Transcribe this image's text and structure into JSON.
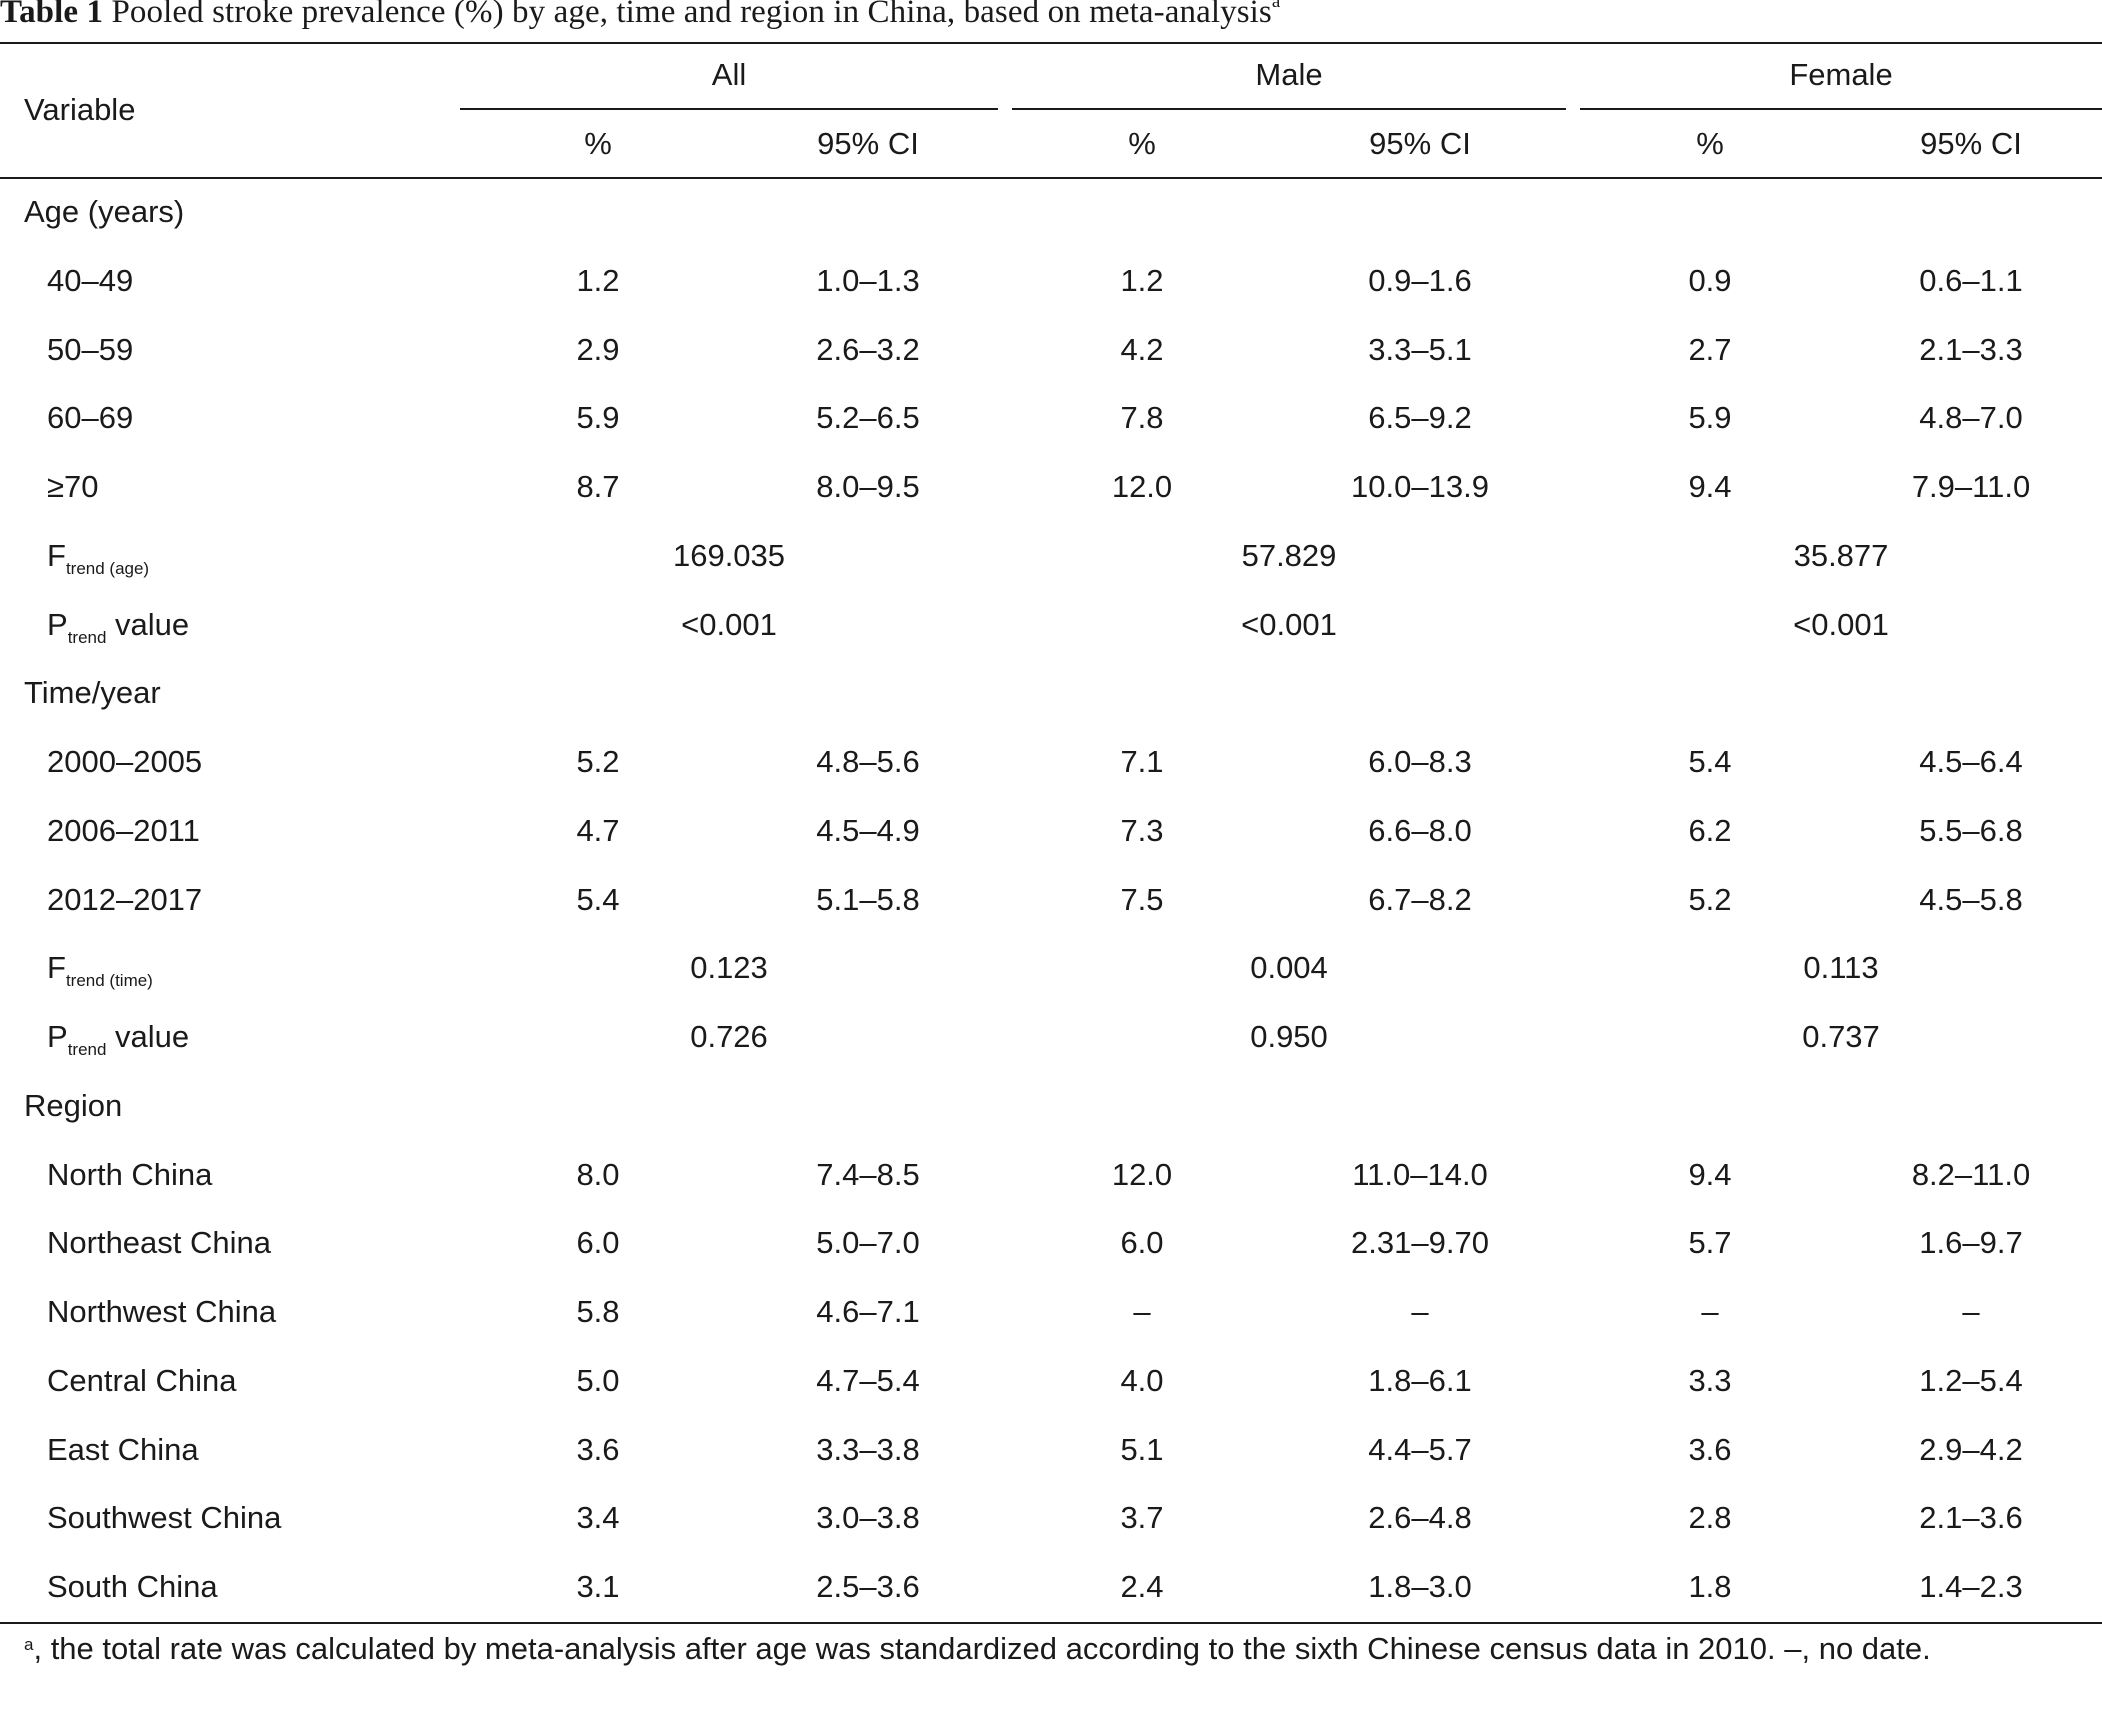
{
  "caption": {
    "label": "Table 1",
    "text": "Pooled stroke prevalence (%) by age, time and region in China, based on meta-analysis",
    "sup": "a"
  },
  "header": {
    "variable": "Variable",
    "groups": [
      "All",
      "Male",
      "Female"
    ],
    "pct": "%",
    "ci": "95% CI"
  },
  "rows": [
    {
      "type": "section",
      "label": "Age (years)"
    },
    {
      "type": "data",
      "label": "40–49",
      "values": [
        "1.2",
        "1.0–1.3",
        "1.2",
        "0.9–1.6",
        "0.9",
        "0.6–1.1"
      ]
    },
    {
      "type": "data",
      "label": "50–59",
      "values": [
        "2.9",
        "2.6–3.2",
        "4.2",
        "3.3–5.1",
        "2.7",
        "2.1–3.3"
      ]
    },
    {
      "type": "data",
      "label": "60–69",
      "values": [
        "5.9",
        "5.2–6.5",
        "7.8",
        "6.5–9.2",
        "5.9",
        "4.8–7.0"
      ]
    },
    {
      "type": "data",
      "label": "≥70",
      "values": [
        "8.7",
        "8.0–9.5",
        "12.0",
        "10.0–13.9",
        "9.4",
        "7.9–11.0"
      ]
    },
    {
      "type": "stat",
      "main": "F",
      "sub": "trend (age)",
      "tail": "",
      "values": [
        "169.035",
        "57.829",
        "35.877"
      ]
    },
    {
      "type": "stat",
      "main": "P",
      "sub": "trend",
      "tail": " value",
      "values": [
        "<0.001",
        "<0.001",
        "<0.001"
      ]
    },
    {
      "type": "section",
      "label": "Time/year"
    },
    {
      "type": "data",
      "label": "2000–2005",
      "values": [
        "5.2",
        "4.8–5.6",
        "7.1",
        "6.0–8.3",
        "5.4",
        "4.5–6.4"
      ]
    },
    {
      "type": "data",
      "label": "2006–2011",
      "values": [
        "4.7",
        "4.5–4.9",
        "7.3",
        "6.6–8.0",
        "6.2",
        "5.5–6.8"
      ]
    },
    {
      "type": "data",
      "label": "2012–2017",
      "values": [
        "5.4",
        "5.1–5.8",
        "7.5",
        "6.7–8.2",
        "5.2",
        "4.5–5.8"
      ]
    },
    {
      "type": "stat",
      "main": "F",
      "sub": "trend (time)",
      "tail": "",
      "values": [
        "0.123",
        "0.004",
        "0.113"
      ]
    },
    {
      "type": "stat",
      "main": "P",
      "sub": "trend",
      "tail": " value",
      "values": [
        "0.726",
        "0.950",
        "0.737"
      ]
    },
    {
      "type": "section",
      "label": "Region"
    },
    {
      "type": "data",
      "label": "North China",
      "values": [
        "8.0",
        "7.4–8.5",
        "12.0",
        "11.0–14.0",
        "9.4",
        "8.2–11.0"
      ]
    },
    {
      "type": "data",
      "label": "Northeast China",
      "values": [
        "6.0",
        "5.0–7.0",
        "6.0",
        "2.31–9.70",
        "5.7",
        "1.6–9.7"
      ]
    },
    {
      "type": "data",
      "label": "Northwest China",
      "values": [
        "5.8",
        "4.6–7.1",
        "–",
        "–",
        "–",
        "–"
      ]
    },
    {
      "type": "data",
      "label": "Central China",
      "values": [
        "5.0",
        "4.7–5.4",
        "4.0",
        "1.8–6.1",
        "3.3",
        "1.2–5.4"
      ]
    },
    {
      "type": "data",
      "label": "East China",
      "values": [
        "3.6",
        "3.3–3.8",
        "5.1",
        "4.4–5.7",
        "3.6",
        "2.9–4.2"
      ]
    },
    {
      "type": "data",
      "label": "Southwest China",
      "values": [
        "3.4",
        "3.0–3.8",
        "3.7",
        "2.6–4.8",
        "2.8",
        "2.1–3.6"
      ]
    },
    {
      "type": "data",
      "label": "South China",
      "values": [
        "3.1",
        "2.5–3.6",
        "2.4",
        "1.8–3.0",
        "1.8",
        "1.4–2.3"
      ]
    }
  ],
  "footnote": {
    "sup": "a",
    "text": ", the total rate was calculated by meta-analysis after age was standardized according to the sixth Chinese census data in 2010. –, no date."
  }
}
